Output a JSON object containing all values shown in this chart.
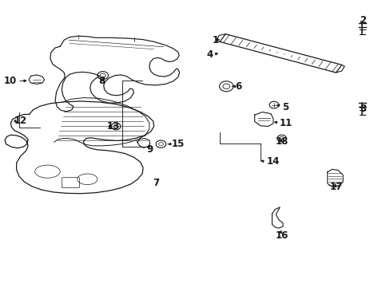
{
  "background_color": "#ffffff",
  "line_color": "#1a1a1a",
  "figure_width": 4.89,
  "figure_height": 3.6,
  "dpi": 100,
  "label_fontsize": 8.5,
  "label_positions": {
    "1": [
      0.558,
      0.862,
      "right"
    ],
    "2": [
      0.93,
      0.93,
      "center"
    ],
    "3": [
      0.93,
      0.62,
      "center"
    ],
    "4": [
      0.542,
      0.812,
      "right"
    ],
    "5": [
      0.72,
      0.628,
      "left"
    ],
    "6": [
      0.6,
      0.7,
      "left"
    ],
    "7": [
      0.395,
      0.362,
      "center"
    ],
    "8": [
      0.255,
      0.718,
      "center"
    ],
    "9": [
      0.38,
      0.48,
      "center"
    ],
    "10": [
      0.035,
      0.718,
      "right"
    ],
    "11": [
      0.715,
      0.57,
      "left"
    ],
    "12": [
      0.028,
      0.58,
      "left"
    ],
    "13": [
      0.268,
      0.56,
      "left"
    ],
    "14": [
      0.68,
      0.438,
      "left"
    ],
    "15": [
      0.435,
      0.498,
      "left"
    ],
    "16": [
      0.72,
      0.178,
      "center"
    ],
    "17": [
      0.86,
      0.348,
      "center"
    ],
    "18": [
      0.72,
      0.508,
      "center"
    ]
  }
}
